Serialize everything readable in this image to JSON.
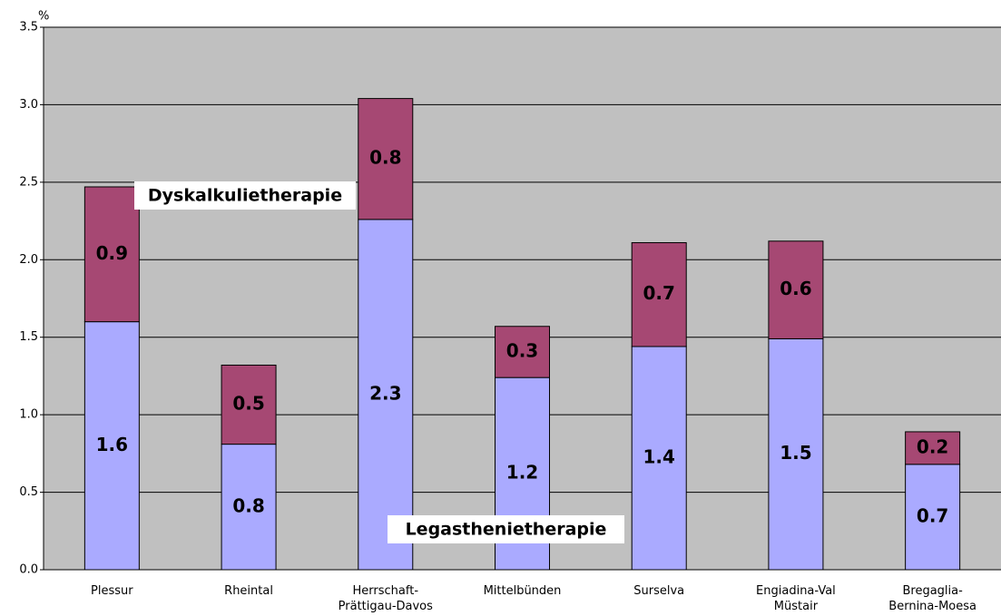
{
  "chart_data": {
    "type": "stacked_bar",
    "y_label": "%",
    "categories": [
      "Plessur",
      "Rheintal",
      "Herrschaft-\nPrättigau-Davos",
      "Mittelbünden",
      "Surselva",
      "Engiadina-Val\nMüstair",
      "Bregaglia-\nBernina-Moesa"
    ],
    "series": [
      {
        "name": "Legasthenietherapie",
        "color": "#aaaaff",
        "values": [
          1.6,
          0.81,
          2.26,
          1.24,
          1.44,
          1.49,
          0.68
        ],
        "value_labels": [
          "1.6",
          "0.8",
          "2.3",
          "1.2",
          "1.4",
          "1.5",
          "0.7"
        ]
      },
      {
        "name": "Dyskalkulietherapie",
        "color": "#a64873",
        "values": [
          0.87,
          0.51,
          0.78,
          0.33,
          0.67,
          0.63,
          0.21
        ],
        "value_labels": [
          "0.9",
          "0.5",
          "0.8",
          "0.3",
          "0.7",
          "0.6",
          "0.2"
        ]
      }
    ],
    "ylim": [
      0,
      3.5
    ],
    "yticks": [
      {
        "value": 0,
        "label": "0.0"
      },
      0.5,
      {
        "value": 1,
        "label": "1.0"
      },
      1.5,
      {
        "value": 2,
        "label": "2.0"
      },
      2.5,
      {
        "value": 3,
        "label": "3.0"
      },
      3.5
    ],
    "grid": true
  }
}
